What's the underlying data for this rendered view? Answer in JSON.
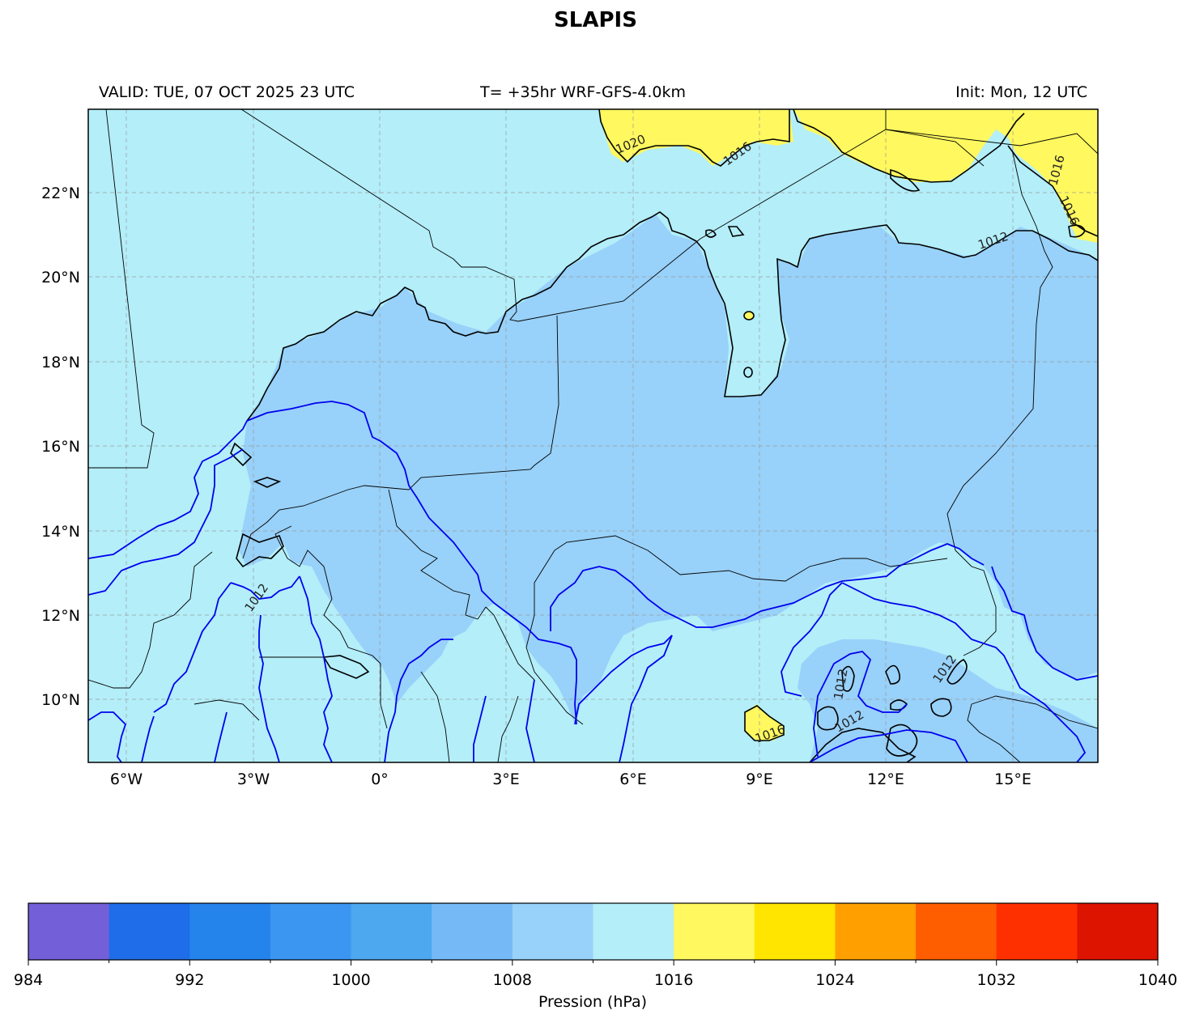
{
  "title": "SLAPIS",
  "subtitle_left": "VALID: TUE, 07 OCT 2025 23 UTC",
  "subtitle_center": "T= +35hr WRF-GFS-4.0km",
  "subtitle_right": "Init: Mon, 12 UTC",
  "map": {
    "lon_range": [
      -7.0,
      17.0
    ],
    "lat_range": [
      8.5,
      24.0
    ],
    "lat_ticks": [
      "22°N",
      "20°N",
      "18°N",
      "16°N",
      "14°N",
      "12°N",
      "10°N"
    ],
    "lon_ticks": [
      "6°W",
      "3°W",
      "0°",
      "3°E",
      "6°E",
      "9°E",
      "12°E",
      "15°E"
    ],
    "contour_labels": [
      "1020",
      "1016",
      "1016",
      "1016",
      "1012",
      "1016",
      "1012",
      "1012",
      "1012",
      "1012",
      "1016"
    ],
    "colors": {
      "background_1012_1016": "#b3eef9",
      "region_1008_1012": "#98d1f9",
      "region_1016_1020": "#fff85f",
      "isobar_line": "#0000ee",
      "coast_line": "#000000"
    }
  },
  "colorbar": {
    "label": "Pression (hPa)",
    "tick_labels": [
      "984",
      "992",
      "1000",
      "1008",
      "1016",
      "1024",
      "1032",
      "1040"
    ],
    "colors": [
      "#7360d8",
      "#1f6de8",
      "#2583ec",
      "#3b96f2",
      "#4ea8f0",
      "#75baf7",
      "#98d1f9",
      "#b3eef9",
      "#fff85f",
      "#ffe500",
      "#ffa000",
      "#ff5e00",
      "#ff3000",
      "#dd1400"
    ]
  }
}
